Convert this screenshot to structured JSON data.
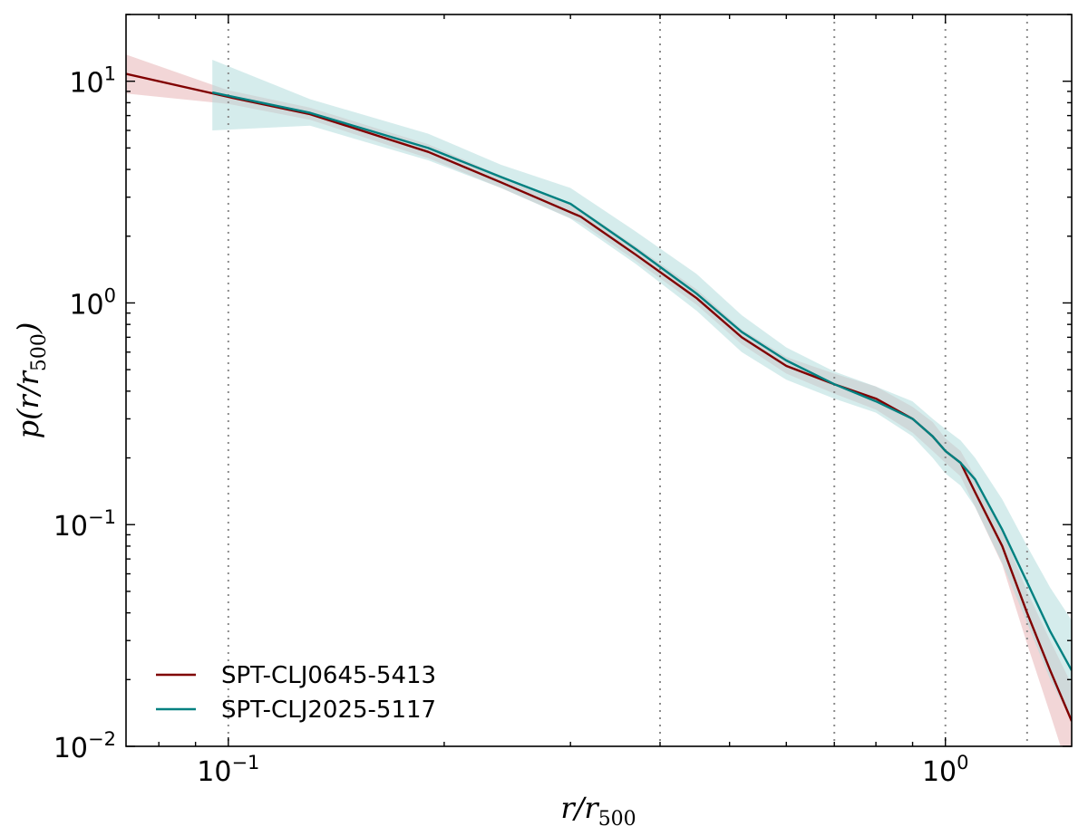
{
  "chart_data": {
    "type": "line",
    "xscale": "log",
    "yscale": "log",
    "xlim": [
      0.072,
      1.5
    ],
    "ylim": [
      0.01,
      20
    ],
    "xlabel": "r/r500",
    "ylabel": "p(r/r500)",
    "grid": false,
    "legend_position": "lower-left",
    "x_ticks": [
      {
        "value": 0.1,
        "base": "10",
        "exp": "−1"
      },
      {
        "value": 1.0,
        "base": "10",
        "exp": "0"
      }
    ],
    "y_ticks": [
      {
        "value": 10,
        "base": "10",
        "exp": "1"
      },
      {
        "value": 1,
        "base": "10",
        "exp": "0"
      },
      {
        "value": 0.1,
        "base": "10",
        "exp": "−1"
      },
      {
        "value": 0.01,
        "base": "10",
        "exp": "−2"
      }
    ],
    "vlines": [
      0.1,
      0.4,
      0.7,
      1.0,
      1.3
    ],
    "series": [
      {
        "name": "SPT-CLJ0645-5413",
        "color": "#800000",
        "band_color": "#e2a3a6",
        "band_opacity": 0.45,
        "x": [
          0.072,
          0.1,
          0.13,
          0.19,
          0.24,
          0.31,
          0.37,
          0.45,
          0.52,
          0.6,
          0.7,
          0.8,
          0.9,
          0.96,
          1.0,
          1.05,
          1.1,
          1.2,
          1.3,
          1.4,
          1.5
        ],
        "y": [
          10.8,
          8.5,
          7.1,
          4.8,
          3.5,
          2.45,
          1.65,
          1.05,
          0.7,
          0.52,
          0.43,
          0.37,
          0.3,
          0.25,
          0.215,
          0.19,
          0.14,
          0.08,
          0.04,
          0.022,
          0.013
        ],
        "lower": [
          8.8,
          7.9,
          6.7,
          4.5,
          3.3,
          2.3,
          1.55,
          0.98,
          0.65,
          0.48,
          0.39,
          0.33,
          0.26,
          0.215,
          0.19,
          0.165,
          0.12,
          0.066,
          0.029,
          0.014,
          0.007
        ],
        "upper": [
          13.2,
          9.1,
          7.6,
          5.2,
          3.75,
          2.65,
          1.8,
          1.15,
          0.76,
          0.57,
          0.48,
          0.42,
          0.34,
          0.29,
          0.245,
          0.215,
          0.165,
          0.095,
          0.05,
          0.03,
          0.019
        ]
      },
      {
        "name": "SPT-CLJ2025-5117",
        "color": "#008080",
        "band_color": "#b3dddc",
        "band_opacity": 0.55,
        "x": [
          0.095,
          0.13,
          0.19,
          0.24,
          0.3,
          0.37,
          0.45,
          0.52,
          0.6,
          0.7,
          0.8,
          0.9,
          0.96,
          1.0,
          1.05,
          1.1,
          1.2,
          1.3,
          1.4,
          1.5
        ],
        "y": [
          8.9,
          7.2,
          5.0,
          3.7,
          2.8,
          1.75,
          1.1,
          0.74,
          0.55,
          0.43,
          0.36,
          0.3,
          0.25,
          0.215,
          0.19,
          0.16,
          0.095,
          0.055,
          0.033,
          0.022
        ],
        "lower": [
          6.0,
          6.3,
          4.4,
          3.3,
          2.4,
          1.5,
          0.92,
          0.6,
          0.45,
          0.37,
          0.32,
          0.25,
          0.2,
          0.17,
          0.15,
          0.12,
          0.067,
          0.036,
          0.02,
          0.013
        ],
        "upper": [
          12.5,
          8.3,
          5.8,
          4.2,
          3.3,
          2.1,
          1.35,
          0.88,
          0.63,
          0.49,
          0.42,
          0.36,
          0.3,
          0.27,
          0.24,
          0.2,
          0.13,
          0.08,
          0.052,
          0.037
        ]
      }
    ]
  }
}
